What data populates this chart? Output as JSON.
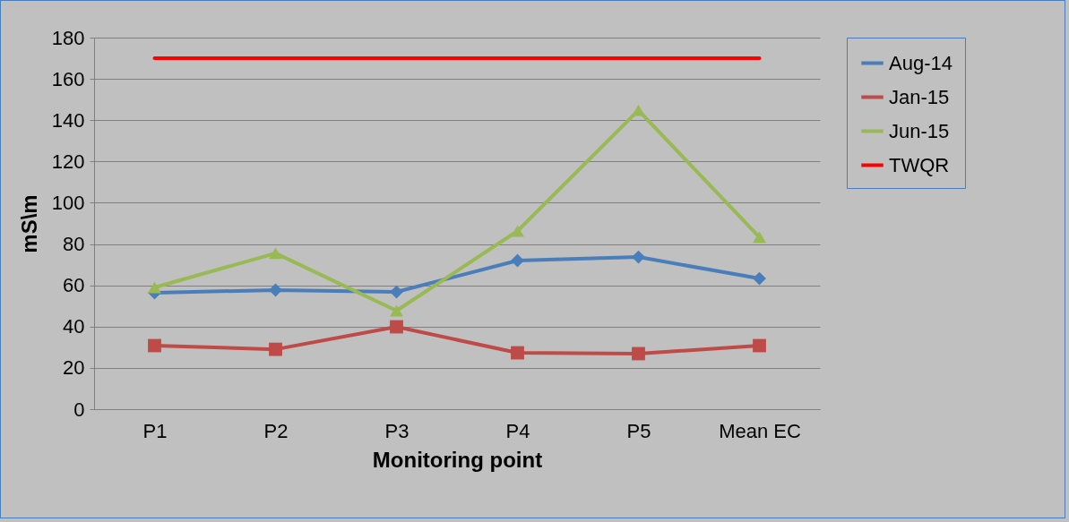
{
  "chart_data": {
    "type": "line",
    "xlabel": "Monitoring point",
    "ylabel": "mS\\m",
    "categories": [
      "P1",
      "P2",
      "P3",
      "P4",
      "P5",
      "Mean EC"
    ],
    "series": [
      {
        "name": "Aug-14",
        "color": "#4a7ebb",
        "marker": "diamond",
        "values": [
          56.4,
          57.7,
          56.8,
          72,
          73.7,
          63.3
        ]
      },
      {
        "name": "Jan-15",
        "color": "#be4b48",
        "marker": "square",
        "values": [
          30.8,
          29,
          39.9,
          27.3,
          26.9,
          30.8
        ]
      },
      {
        "name": "Jun-15",
        "color": "#98b954",
        "marker": "triangle",
        "values": [
          59,
          75.5,
          47.7,
          86.3,
          144.8,
          83.3
        ]
      },
      {
        "name": "TWQR",
        "color": "#ff0000",
        "marker": "none",
        "values": [
          170,
          170,
          170,
          170,
          170,
          170
        ]
      }
    ],
    "ylim": [
      0,
      180
    ],
    "yticks": [
      0,
      20,
      40,
      60,
      80,
      100,
      120,
      140,
      160,
      180
    ],
    "grid": "y",
    "legend": "right"
  }
}
